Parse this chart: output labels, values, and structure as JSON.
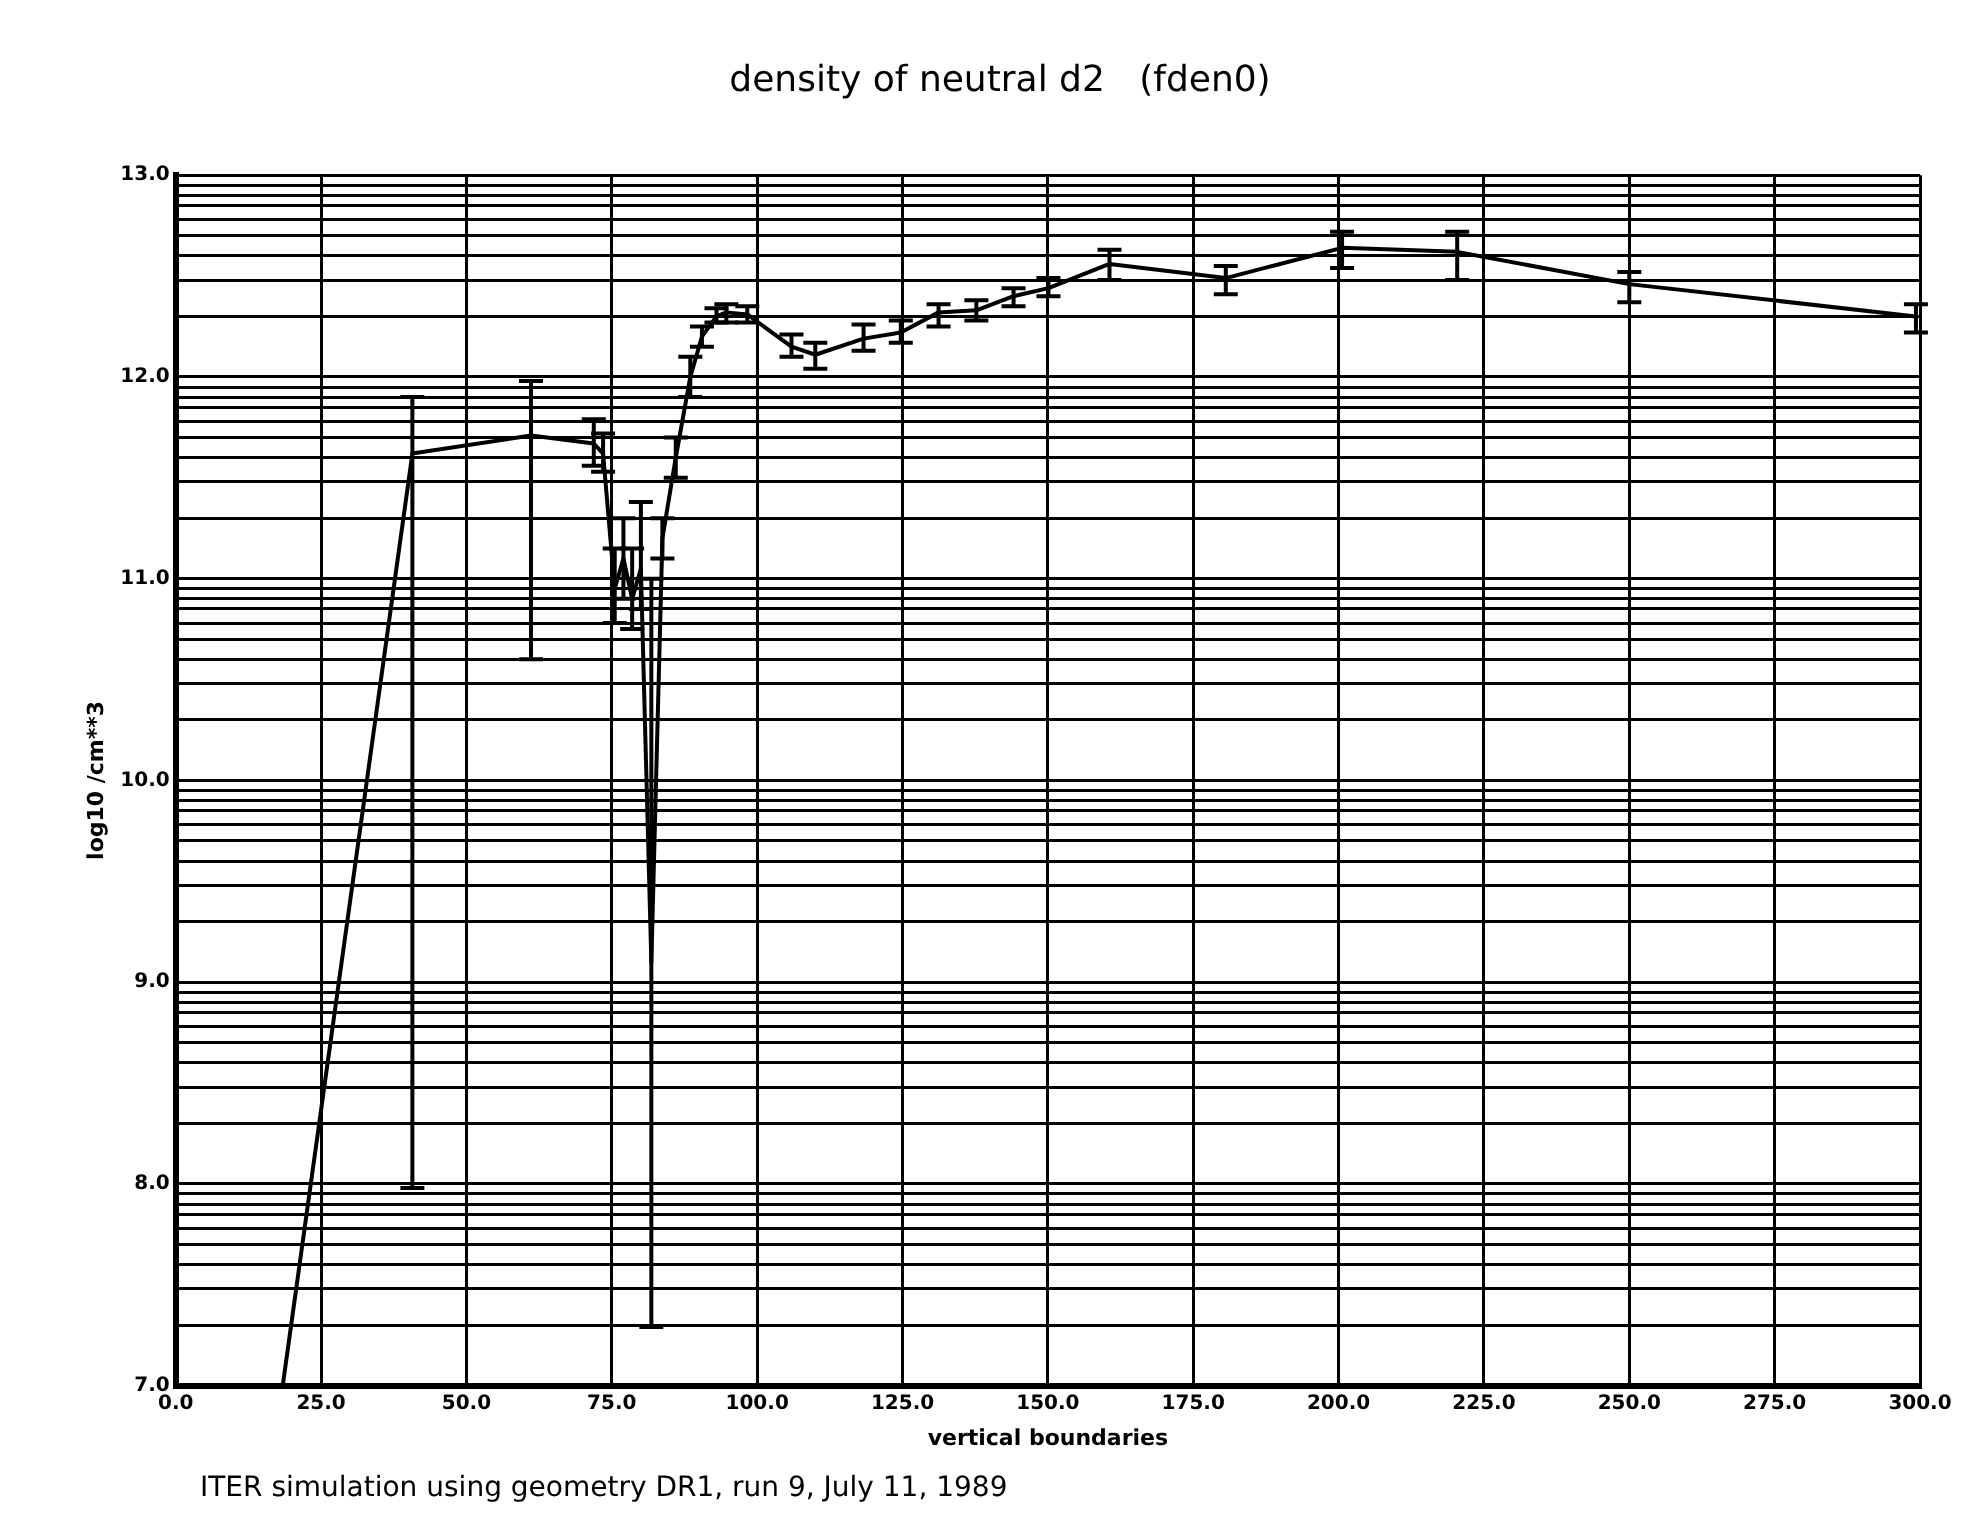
{
  "chart_data": {
    "type": "line",
    "title": "density of neutral d2   (fden0)",
    "xlabel": "vertical boundaries",
    "ylabel": "log10 /cm**3",
    "annotations": [
      "ITER simulation using geometry DR1, run 9, July 11, 1989"
    ],
    "series": [
      {
        "color": "#000000",
        "x": [
          18.4,
          40.7,
          61.1,
          71.9,
          73.5,
          75.5,
          77,
          78.5,
          80,
          81.8,
          83.7,
          86,
          88.5,
          90.5,
          93,
          94.7,
          98.3,
          105.9,
          110,
          118.3,
          124.7,
          131.2,
          137.7,
          144.1,
          150.1,
          160.6,
          180.6,
          200.6,
          220.4,
          250,
          299.3
        ],
        "values": [
          7.0,
          11.62,
          11.71,
          11.67,
          11.62,
          10.95,
          11.1,
          10.9,
          11.05,
          9.1,
          11.2,
          11.6,
          12.0,
          12.2,
          12.3,
          12.32,
          12.31,
          12.15,
          12.11,
          12.19,
          12.22,
          12.32,
          12.33,
          12.4,
          12.44,
          12.56,
          12.49,
          12.64,
          12.62,
          12.46,
          12.3
        ],
        "errors": [
          null,
          [
            7.98,
            11.9
          ],
          [
            10.6,
            11.98
          ],
          [
            11.56,
            11.79
          ],
          [
            11.53,
            11.72
          ],
          [
            10.78,
            11.15
          ],
          [
            10.9,
            11.3
          ],
          [
            10.75,
            11.15
          ],
          [
            10.85,
            11.38
          ],
          [
            7.29,
            11.0
          ],
          [
            11.1,
            11.3
          ],
          [
            11.5,
            11.7
          ],
          [
            11.9,
            12.1
          ],
          [
            12.15,
            12.25
          ],
          [
            12.27,
            12.34
          ],
          [
            12.27,
            12.36
          ],
          [
            12.27,
            12.35
          ],
          [
            12.1,
            12.21
          ],
          [
            12.04,
            12.17
          ],
          [
            12.13,
            12.26
          ],
          [
            12.17,
            12.28
          ],
          [
            12.25,
            12.36
          ],
          [
            12.28,
            12.38
          ],
          [
            12.35,
            12.44
          ],
          [
            12.4,
            12.49
          ],
          [
            12.48,
            12.63
          ],
          [
            12.41,
            12.55
          ],
          [
            12.54,
            12.72
          ],
          [
            12.48,
            12.72
          ],
          [
            12.37,
            12.52
          ],
          [
            12.22,
            12.36
          ]
        ]
      }
    ],
    "xlim": [
      0,
      300
    ],
    "xticks": [
      {
        "value": 0,
        "label": "0.0"
      },
      {
        "value": 25,
        "label": "25.0"
      },
      {
        "value": 50,
        "label": "50.0"
      },
      {
        "value": 75,
        "label": "75.0"
      },
      {
        "value": 100,
        "label": "100.0"
      },
      {
        "value": 125,
        "label": "125.0"
      },
      {
        "value": 150,
        "label": "150.0"
      },
      {
        "value": 175,
        "label": "175.0"
      },
      {
        "value": 200,
        "label": "200.0"
      },
      {
        "value": 225,
        "label": "225.0"
      },
      {
        "value": 250,
        "label": "250.0"
      },
      {
        "value": 275,
        "label": "275.0"
      },
      {
        "value": 300,
        "label": "300.0"
      }
    ],
    "ylim": [
      7,
      13
    ],
    "yticks": [
      {
        "value": 7,
        "label": "7.0"
      },
      {
        "value": 7.3,
        "label": null
      },
      {
        "value": 7.48,
        "label": null
      },
      {
        "value": 7.6,
        "label": null
      },
      {
        "value": 7.7,
        "label": null
      },
      {
        "value": 7.78,
        "label": null
      },
      {
        "value": 7.85,
        "label": null
      },
      {
        "value": 7.9,
        "label": null
      },
      {
        "value": 7.95,
        "label": null
      },
      {
        "value": 8,
        "label": "8.0"
      },
      {
        "value": 8.3,
        "label": null
      },
      {
        "value": 8.48,
        "label": null
      },
      {
        "value": 8.6,
        "label": null
      },
      {
        "value": 8.7,
        "label": null
      },
      {
        "value": 8.78,
        "label": null
      },
      {
        "value": 8.85,
        "label": null
      },
      {
        "value": 8.9,
        "label": null
      },
      {
        "value": 8.95,
        "label": null
      },
      {
        "value": 9,
        "label": "9.0"
      },
      {
        "value": 9.3,
        "label": null
      },
      {
        "value": 9.48,
        "label": null
      },
      {
        "value": 9.6,
        "label": null
      },
      {
        "value": 9.7,
        "label": null
      },
      {
        "value": 9.78,
        "label": null
      },
      {
        "value": 9.85,
        "label": null
      },
      {
        "value": 9.9,
        "label": null
      },
      {
        "value": 9.95,
        "label": null
      },
      {
        "value": 10,
        "label": "10.0"
      },
      {
        "value": 10.3,
        "label": null
      },
      {
        "value": 10.48,
        "label": null
      },
      {
        "value": 10.6,
        "label": null
      },
      {
        "value": 10.7,
        "label": null
      },
      {
        "value": 10.78,
        "label": null
      },
      {
        "value": 10.85,
        "label": null
      },
      {
        "value": 10.9,
        "label": null
      },
      {
        "value": 10.95,
        "label": null
      },
      {
        "value": 11,
        "label": "11.0"
      },
      {
        "value": 11.3,
        "label": null
      },
      {
        "value": 11.48,
        "label": null
      },
      {
        "value": 11.6,
        "label": null
      },
      {
        "value": 11.7,
        "label": null
      },
      {
        "value": 11.78,
        "label": null
      },
      {
        "value": 11.85,
        "label": null
      },
      {
        "value": 11.9,
        "label": null
      },
      {
        "value": 11.95,
        "label": null
      },
      {
        "value": 12,
        "label": "12.0"
      },
      {
        "value": 12.3,
        "label": null
      },
      {
        "value": 12.48,
        "label": null
      },
      {
        "value": 12.6,
        "label": null
      },
      {
        "value": 12.7,
        "label": null
      },
      {
        "value": 12.78,
        "label": null
      },
      {
        "value": 12.85,
        "label": null
      },
      {
        "value": 12.9,
        "label": null
      },
      {
        "value": 12.95,
        "label": null
      },
      {
        "value": 13,
        "label": "13.0"
      }
    ],
    "grid": true,
    "legend": false,
    "line_style": "solid"
  }
}
